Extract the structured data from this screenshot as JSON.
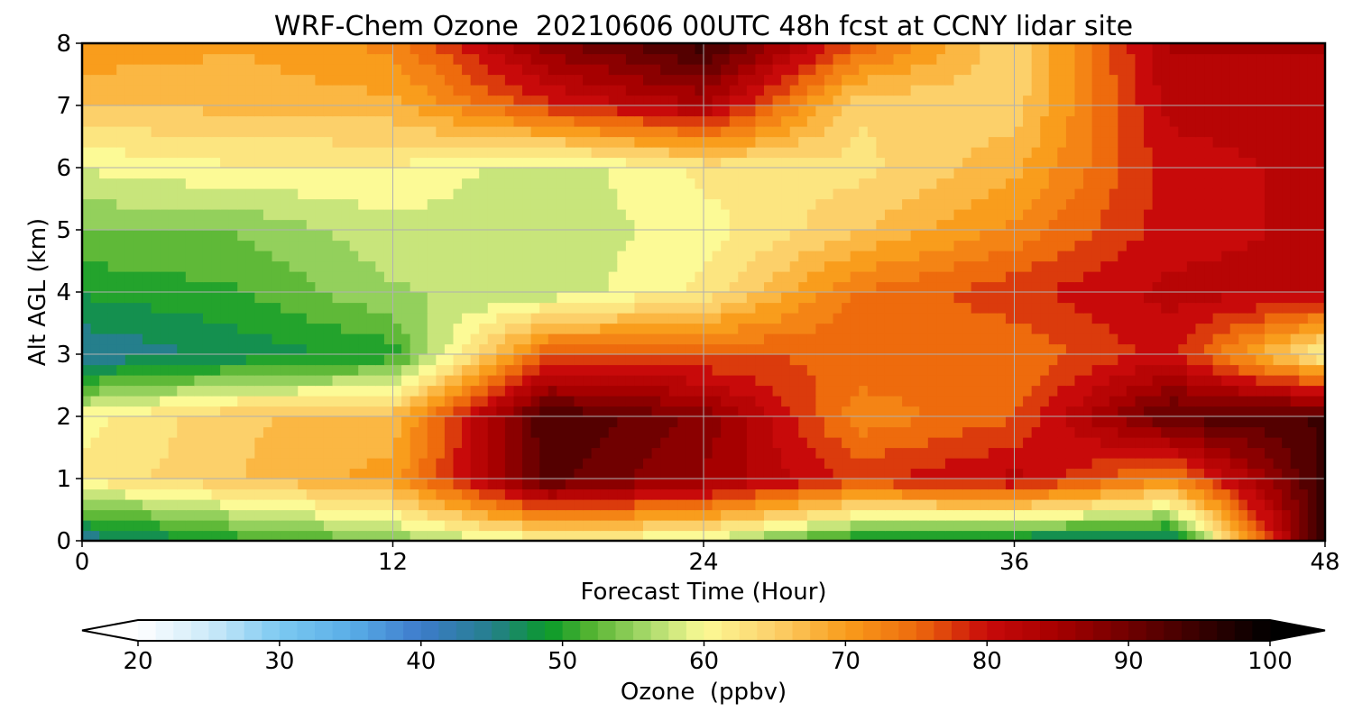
{
  "chart_data": {
    "type": "heatmap",
    "title": "WRF-Chem Ozone  20210606 00UTC 48h fcst at CCNY lidar site",
    "xlabel": "Forecast Time (Hour)",
    "ylabel": "Alt AGL (km)",
    "xlim": [
      0,
      48
    ],
    "ylim": [
      0,
      8
    ],
    "x_ticks": [
      "0",
      "12",
      "24",
      "36",
      "48"
    ],
    "y_ticks": [
      "0",
      "1",
      "2",
      "3",
      "4",
      "5",
      "6",
      "7",
      "8"
    ],
    "grid": true,
    "x": [
      0,
      6,
      12,
      18,
      24,
      30,
      36,
      42,
      48
    ],
    "y": [
      0,
      1,
      2,
      3,
      4,
      5,
      6,
      7,
      8
    ],
    "z_rows": [
      [
        44,
        50,
        54,
        60,
        58,
        48,
        46,
        44,
        96
      ],
      [
        62,
        66,
        70,
        92,
        86,
        78,
        82,
        72,
        95
      ],
      [
        60,
        66,
        67,
        94,
        88,
        72,
        76,
        92,
        94
      ],
      [
        44,
        47,
        50,
        76,
        76,
        76,
        74,
        80,
        60
      ],
      [
        49,
        51,
        56,
        57,
        62,
        74,
        78,
        82,
        82
      ],
      [
        54,
        54,
        58,
        57,
        60,
        66,
        72,
        80,
        82
      ],
      [
        59,
        61,
        61,
        57,
        62,
        63,
        68,
        80,
        82
      ],
      [
        66,
        67,
        68,
        78,
        84,
        64,
        65,
        82,
        83
      ],
      [
        71,
        69,
        72,
        88,
        95,
        76,
        64,
        84,
        84
      ]
    ],
    "colorbar": {
      "label": "Ozone  (ppbv)",
      "min": 20,
      "max": 100,
      "ticks": [
        "20",
        "30",
        "40",
        "50",
        "60",
        "70",
        "80",
        "90",
        "100"
      ],
      "extend": "both",
      "stops": [
        [
          20,
          "#ffffff"
        ],
        [
          25,
          "#cdeaf9"
        ],
        [
          30,
          "#7cc9f1"
        ],
        [
          35,
          "#5aaee7"
        ],
        [
          40,
          "#3d7bcb"
        ],
        [
          45,
          "#257f8c"
        ],
        [
          49,
          "#0a9a2a"
        ],
        [
          52,
          "#54b431"
        ],
        [
          56,
          "#a8d96a"
        ],
        [
          60,
          "#fcfa96"
        ],
        [
          65,
          "#fcd06a"
        ],
        [
          70,
          "#f99d1c"
        ],
        [
          75,
          "#ee6b0d"
        ],
        [
          80,
          "#c80a0a"
        ],
        [
          85,
          "#a60000"
        ],
        [
          92,
          "#5a0000"
        ],
        [
          100,
          "#000000"
        ]
      ]
    }
  }
}
